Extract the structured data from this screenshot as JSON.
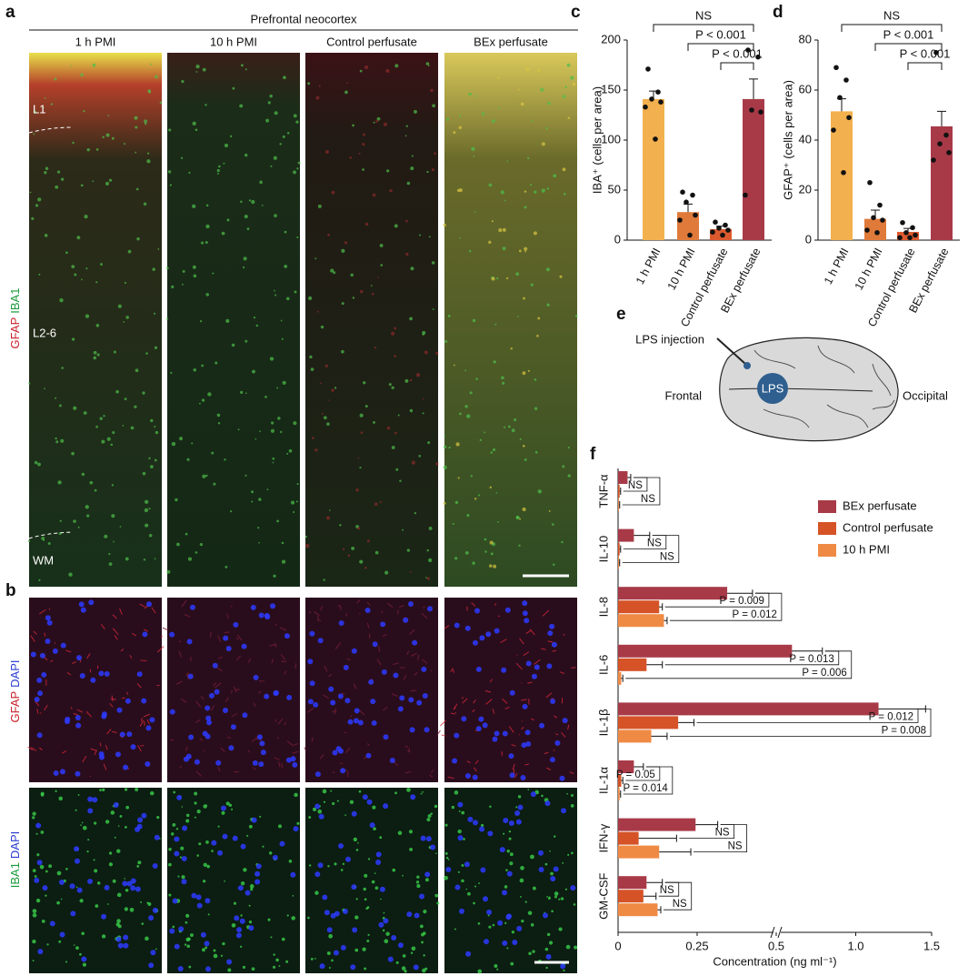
{
  "figure": {
    "a": {
      "label": "a",
      "title": "Prefrontal neocortex",
      "columns": [
        "1 h PMI",
        "10 h PMI",
        "Control perfusate",
        "BEx perfusate"
      ],
      "layers": [
        "L1",
        "L2-6",
        "WM"
      ],
      "stain": [
        "GFAP",
        "IBA1"
      ]
    },
    "b": {
      "label": "b",
      "stain_top": [
        "GFAP",
        "DAPI"
      ],
      "stain_bottom": [
        "IBA1",
        "DAPI"
      ]
    },
    "e": {
      "label": "e",
      "injection": "LPS injection",
      "site": "LPS",
      "front": "Frontal",
      "back": "Occipital"
    }
  },
  "chart_data": [
    {
      "label": "c",
      "type": "bar",
      "ylabel": "IBA⁺ (cells per area)",
      "categories": [
        "1 h PMI",
        "10 h PMI",
        "Control perfusate",
        "BEx perfusate"
      ],
      "colors": [
        "#f2b04e",
        "#e07a3a",
        "#dc5a2e",
        "#a83a48"
      ],
      "values": [
        141,
        28,
        11,
        141
      ],
      "errors": [
        8,
        8,
        3,
        20
      ],
      "points": [
        [
          171,
          148,
          141,
          138,
          133,
          101
        ],
        [
          48,
          45,
          38,
          25,
          20,
          5
        ],
        [
          18,
          15,
          12,
          10,
          8,
          5
        ],
        [
          190,
          183,
          130,
          128,
          45
        ]
      ],
      "ylim": [
        0,
        200
      ],
      "yticks": [
        0,
        50,
        100,
        150,
        200
      ],
      "annotations": [
        "NS",
        "P < 0.001",
        "P < 0.001"
      ]
    },
    {
      "label": "d",
      "type": "bar",
      "ylabel": "GFAP⁺ (cells per area)",
      "categories": [
        "1 h PMI",
        "10 h PMI",
        "Control perfusate",
        "BEx perfusate"
      ],
      "colors": [
        "#f2b04e",
        "#e07a3a",
        "#dc5a2e",
        "#a83a48"
      ],
      "values": [
        51.5,
        8.5,
        3.3,
        45.5
      ],
      "errors": [
        5,
        3.5,
        1.4,
        6
      ],
      "points": [
        [
          69,
          64,
          57,
          49,
          44,
          27
        ],
        [
          23,
          14,
          9,
          8,
          4,
          3
        ],
        [
          7,
          5,
          3,
          2,
          1,
          1
        ],
        [
          75,
          42,
          38.5,
          35,
          32
        ]
      ],
      "ylim": [
        0,
        80
      ],
      "yticks": [
        0,
        20,
        40,
        60,
        80
      ],
      "annotations": [
        "NS",
        "P < 0.001",
        "P < 0.001"
      ]
    },
    {
      "label": "f",
      "type": "barh",
      "xlabel": "Concentration (ng ml⁻¹)",
      "categories": [
        "TNF-α",
        "IL-10",
        "IL-8",
        "IL-6",
        "IL-1β",
        "IL-1α",
        "IFN-γ",
        "GM-CSF"
      ],
      "series": [
        {
          "name": "BEx perfusate",
          "color": "#a83a48",
          "values": [
            0.03,
            0.05,
            0.345,
            0.58,
            1.15,
            0.05,
            0.245,
            0.09
          ],
          "errors": [
            0.01,
            0.05,
            0.08,
            0.2,
            0.31,
            0.03,
            0.07,
            0.05
          ]
        },
        {
          "name": "Control perfusate",
          "color": "#d55327",
          "values": [
            0.005,
            0.005,
            0.13,
            0.09,
            0.19,
            0.01,
            0.065,
            0.08
          ],
          "errors": [
            0.003,
            0.003,
            0.01,
            0.05,
            0.05,
            0.005,
            0.12,
            0.04
          ]
        },
        {
          "name": "10 h PMI",
          "color": "#ef8a45",
          "values": [
            0.003,
            0.003,
            0.145,
            0.01,
            0.105,
            0.005,
            0.13,
            0.125
          ],
          "errors": [
            0.002,
            0.002,
            0.01,
            0.005,
            0.05,
            0.003,
            0.1,
            0.01
          ]
        }
      ],
      "xlim": [
        0,
        1.5
      ],
      "xticks": [
        0,
        0.25,
        0.5,
        {
          "value": 1,
          "label": "1.0"
        },
        1.5
      ],
      "axis_break": 0.5,
      "comparisons": [
        [
          "NS",
          "NS"
        ],
        [
          "NS",
          "NS"
        ],
        [
          "P = 0.009",
          "P = 0.012"
        ],
        [
          "P = 0.013",
          "P = 0.006"
        ],
        [
          "P = 0.012",
          "P = 0.008"
        ],
        [
          "P = 0.05",
          "P = 0.014"
        ],
        [
          "NS",
          "NS"
        ],
        [
          "NS",
          "NS"
        ]
      ],
      "legend": "upper right"
    }
  ]
}
